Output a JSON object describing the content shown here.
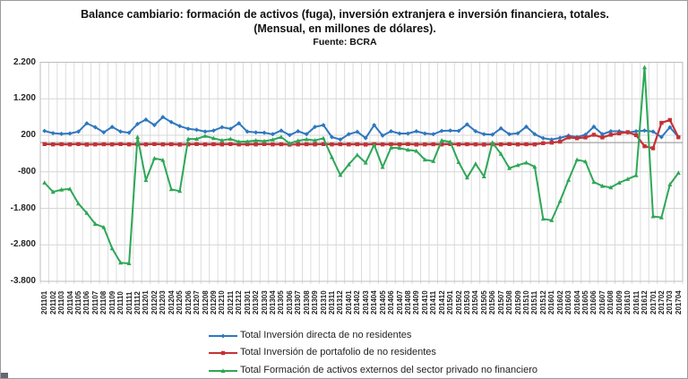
{
  "y_axis": {
    "tick_labels": [
      "2.200",
      "1.200",
      "200",
      "-800",
      "-1.800",
      "-2.800",
      "-3.800"
    ],
    "tick_values": [
      2200,
      1200,
      200,
      -800,
      -1800,
      -2800,
      -3800
    ]
  },
  "chart_data": {
    "type": "line",
    "title": "Balance cambiario: formación de activos (fuga), inversión extranjera e inversión financiera, totales.",
    "subtitle": "(Mensual, en millones de dólares).",
    "source": "Fuente: BCRA",
    "ylim": [
      -3800,
      2200
    ],
    "yticks": [
      2200,
      1200,
      200,
      -800,
      -1800,
      -2800,
      -3800
    ],
    "grid": true,
    "zero_axis_line": true,
    "legend_position": "bottom",
    "x": [
      "201101",
      "201102",
      "201103",
      "201104",
      "201105",
      "201106",
      "201107",
      "201108",
      "201109",
      "201110",
      "201111",
      "201112",
      "201201",
      "201202",
      "201203",
      "201204",
      "201205",
      "201206",
      "201207",
      "201208",
      "201209",
      "201210",
      "201211",
      "201212",
      "201301",
      "201302",
      "201303",
      "201304",
      "201305",
      "201306",
      "201307",
      "201308",
      "201309",
      "201310",
      "201311",
      "201312",
      "201401",
      "201402",
      "201403",
      "201404",
      "201405",
      "201406",
      "201407",
      "201408",
      "201409",
      "201410",
      "201411",
      "201412",
      "201501",
      "201502",
      "201503",
      "201504",
      "201505",
      "201506",
      "201507",
      "201508",
      "201509",
      "201510",
      "201511",
      "201512",
      "201601",
      "201602",
      "201603",
      "201604",
      "201605",
      "201606",
      "201607",
      "201608",
      "201609",
      "201610",
      "201611",
      "201612",
      "201701",
      "201702",
      "201703",
      "201704"
    ],
    "series": [
      {
        "name": "Total Inversión directa de no residentes",
        "color": "#2e78be",
        "marker": "diamond",
        "values": [
          320,
          260,
          240,
          250,
          300,
          530,
          420,
          280,
          430,
          300,
          270,
          510,
          630,
          480,
          700,
          560,
          450,
          380,
          350,
          300,
          330,
          420,
          380,
          530,
          300,
          280,
          270,
          230,
          330,
          205,
          310,
          230,
          430,
          480,
          150,
          85,
          230,
          295,
          125,
          480,
          190,
          310,
          250,
          250,
          310,
          250,
          230,
          320,
          330,
          320,
          500,
          310,
          230,
          220,
          390,
          230,
          255,
          435,
          230,
          120,
          85,
          130,
          190,
          150,
          215,
          435,
          230,
          310,
          310,
          275,
          310,
          330,
          300,
          150,
          420,
          150
        ]
      },
      {
        "name": "Total Inversión de portafolio de no residentes",
        "color": "#c43235",
        "marker": "square",
        "values": [
          -40,
          -50,
          -45,
          -50,
          -40,
          -55,
          -50,
          -45,
          -50,
          -40,
          -50,
          -45,
          -50,
          -40,
          -50,
          -45,
          -55,
          -50,
          -40,
          -50,
          -45,
          -50,
          -40,
          -50,
          -45,
          -50,
          -40,
          -50,
          -45,
          -55,
          -50,
          -45,
          -50,
          -40,
          -50,
          -45,
          -50,
          -45,
          -55,
          -40,
          -50,
          -45,
          -50,
          -40,
          -55,
          -50,
          -45,
          -50,
          -40,
          -50,
          -45,
          -50,
          -55,
          -45,
          -50,
          -40,
          -50,
          -45,
          -50,
          -15,
          0,
          25,
          140,
          120,
          140,
          215,
          140,
          215,
          255,
          285,
          205,
          -100,
          -155,
          540,
          620,
          145
        ]
      },
      {
        "name": "Total Formación  de activos externos del sector privado no financiero",
        "color": "#2ea757",
        "marker": "triangle",
        "values": [
          -1100,
          -1350,
          -1290,
          -1270,
          -1670,
          -1930,
          -2230,
          -2320,
          -2900,
          -3290,
          -3310,
          150,
          -1030,
          -430,
          -480,
          -1280,
          -1330,
          100,
          100,
          180,
          120,
          60,
          100,
          20,
          30,
          60,
          40,
          80,
          150,
          -20,
          50,
          90,
          60,
          120,
          -400,
          -890,
          -600,
          -340,
          -550,
          -60,
          -670,
          -140,
          -150,
          -200,
          -230,
          -470,
          -510,
          60,
          20,
          -535,
          -960,
          -580,
          -930,
          0,
          -310,
          -700,
          -620,
          -550,
          -665,
          -2090,
          -2130,
          -1600,
          -1025,
          -470,
          -520,
          -1080,
          -1190,
          -1230,
          -1100,
          -1000,
          -900,
          2060,
          -2020,
          -2050,
          -1150,
          -830
        ]
      }
    ]
  }
}
